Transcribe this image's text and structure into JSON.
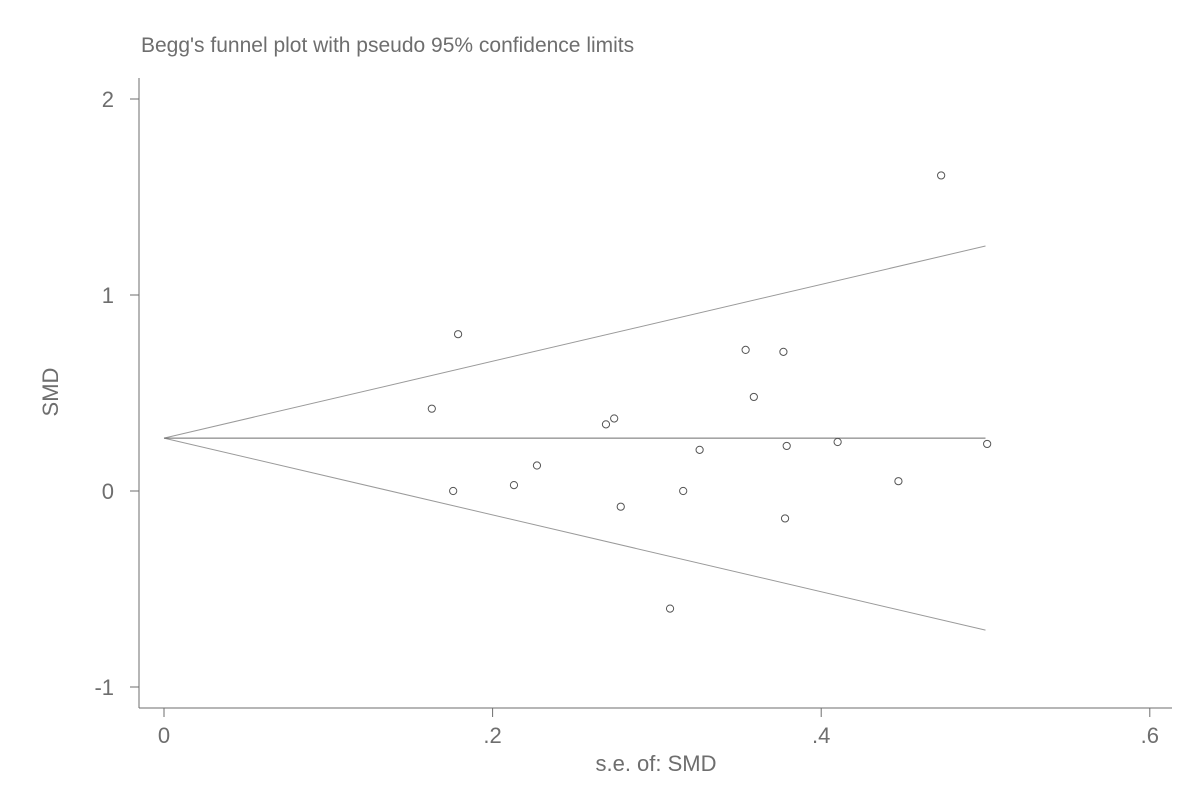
{
  "chart_data": {
    "type": "scatter",
    "title": "Begg's funnel plot with pseudo 95% confidence limits",
    "xlabel": "s.e. of: SMD",
    "ylabel": "SMD",
    "xlim": [
      0,
      0.6
    ],
    "ylim": [
      -1,
      2
    ],
    "x_ticks": [
      {
        "value": 0,
        "label": "0"
      },
      {
        "value": 0.2,
        "label": ".2"
      },
      {
        "value": 0.4,
        "label": ".4"
      },
      {
        "value": 0.6,
        "label": ".6"
      }
    ],
    "y_ticks": [
      {
        "value": -1,
        "label": "-1"
      },
      {
        "value": 0,
        "label": "0"
      },
      {
        "value": 1,
        "label": "1"
      },
      {
        "value": 2,
        "label": "2"
      }
    ],
    "grid": false,
    "pooled_estimate": 0.27,
    "ci_upper_line": {
      "x": [
        0,
        0.5
      ],
      "y": [
        0.27,
        1.25
      ]
    },
    "ci_lower_line": {
      "x": [
        0,
        0.5
      ],
      "y": [
        0.27,
        -0.71
      ]
    },
    "points": [
      {
        "x": 0.163,
        "y": 0.42
      },
      {
        "x": 0.176,
        "y": 0.0
      },
      {
        "x": 0.179,
        "y": 0.8
      },
      {
        "x": 0.213,
        "y": 0.03
      },
      {
        "x": 0.227,
        "y": 0.13
      },
      {
        "x": 0.269,
        "y": 0.34
      },
      {
        "x": 0.274,
        "y": 0.37
      },
      {
        "x": 0.278,
        "y": -0.08
      },
      {
        "x": 0.308,
        "y": -0.6
      },
      {
        "x": 0.316,
        "y": 0.0
      },
      {
        "x": 0.326,
        "y": 0.21
      },
      {
        "x": 0.354,
        "y": 0.72
      },
      {
        "x": 0.359,
        "y": 0.48
      },
      {
        "x": 0.377,
        "y": 0.71
      },
      {
        "x": 0.378,
        "y": -0.14
      },
      {
        "x": 0.379,
        "y": 0.23
      },
      {
        "x": 0.41,
        "y": 0.25
      },
      {
        "x": 0.447,
        "y": 0.05
      },
      {
        "x": 0.473,
        "y": 1.61
      },
      {
        "x": 0.501,
        "y": 0.24
      }
    ]
  }
}
